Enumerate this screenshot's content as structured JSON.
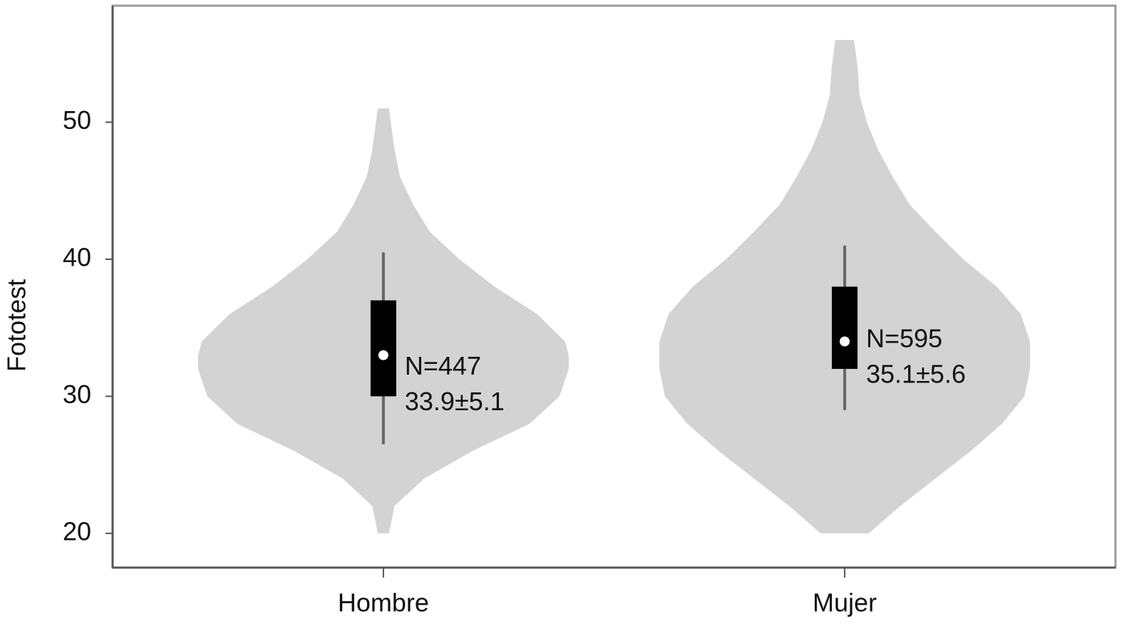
{
  "chart_data": {
    "type": "violin",
    "y_label": "Fototest",
    "categories": [
      "Hombre",
      "Mujer"
    ],
    "ylim": [
      17.5,
      58.5
    ],
    "yticks": [
      20,
      30,
      40,
      50
    ],
    "color": "#d3d3d3",
    "violins": [
      {
        "min": 20,
        "max": 51,
        "q1": 30,
        "median": 33,
        "q3": 37,
        "whisker_low": 26.5,
        "whisker_high": 40.5,
        "n_label": "N=447",
        "stat_label": "33.9±5.1",
        "density": {
          "y": [
            20,
            22,
            24,
            26,
            28,
            30,
            32,
            33,
            34,
            36,
            38,
            40,
            42,
            44,
            46,
            48,
            50,
            51
          ],
          "width": [
            0.03,
            0.06,
            0.22,
            0.48,
            0.79,
            0.95,
            1.0,
            1.0,
            0.98,
            0.83,
            0.6,
            0.41,
            0.25,
            0.16,
            0.09,
            0.06,
            0.04,
            0.03
          ]
        }
      },
      {
        "min": 20,
        "max": 56,
        "q1": 32,
        "median": 34,
        "q3": 38,
        "whisker_low": 29,
        "whisker_high": 41,
        "n_label": "N=595",
        "stat_label": "35.1±5.6",
        "density": {
          "y": [
            20,
            22,
            24,
            26,
            28,
            30,
            32,
            34,
            36,
            38,
            40,
            42,
            44,
            46,
            48,
            50,
            52,
            54,
            56
          ],
          "width": [
            0.13,
            0.3,
            0.49,
            0.68,
            0.85,
            0.97,
            1.0,
            1.0,
            0.95,
            0.82,
            0.64,
            0.49,
            0.35,
            0.26,
            0.18,
            0.12,
            0.08,
            0.07,
            0.05
          ]
        }
      }
    ]
  }
}
